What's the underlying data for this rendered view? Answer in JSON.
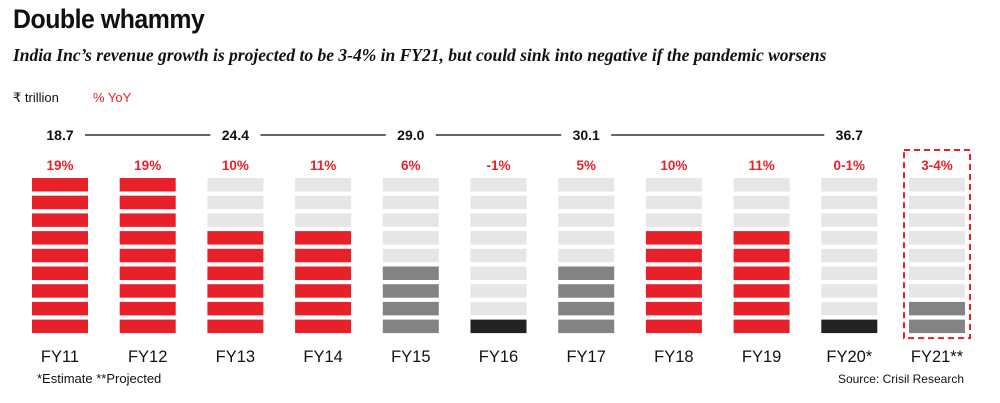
{
  "header": {
    "title": "Double whammy",
    "subtitle": "India Inc’s revenue growth is projected to be 3-4% in FY21, but could sink into negative if the pandemic worsens"
  },
  "legend": {
    "unit_label": "₹ trillion",
    "yoy_label": "% YoY"
  },
  "footer": {
    "footnote": "*Estimate **Projected",
    "source": "Source: Crisil Research"
  },
  "colors": {
    "positive": "#e8202a",
    "moderate": "#838383",
    "negative": "#222222",
    "empty": "#e6e6e6",
    "text": "#111111"
  },
  "chart_data": {
    "type": "bar",
    "categories": [
      "FY11",
      "FY12",
      "FY13",
      "FY14",
      "FY15",
      "FY16",
      "FY17",
      "FY18",
      "FY19",
      "FY20*",
      "FY21**"
    ],
    "yoy_labels": [
      "19%",
      "19%",
      "10%",
      "11%",
      "6%",
      "-1%",
      "5%",
      "10%",
      "11%",
      "0-1%",
      "3-4%"
    ],
    "yoy_values": [
      19,
      19,
      10,
      11,
      6,
      -1,
      5,
      10,
      11,
      0.5,
      3.5
    ],
    "max_segments": 9,
    "filled_segments": [
      9,
      9,
      6,
      6,
      4,
      1,
      4,
      6,
      6,
      1,
      2
    ],
    "segment_color": [
      "positive",
      "positive",
      "positive",
      "positive",
      "moderate",
      "negative",
      "moderate",
      "positive",
      "positive",
      "negative",
      "moderate"
    ],
    "highlighted": [
      false,
      false,
      false,
      false,
      false,
      false,
      false,
      false,
      false,
      false,
      true
    ],
    "revenue_trillion": [
      {
        "value": "18.7",
        "category": "FY11"
      },
      {
        "value": "24.4",
        "category": "FY13"
      },
      {
        "value": "29.0",
        "category": "FY15"
      },
      {
        "value": "30.1",
        "category": "FY17"
      },
      {
        "value": "36.7",
        "category": "FY20*"
      }
    ]
  }
}
